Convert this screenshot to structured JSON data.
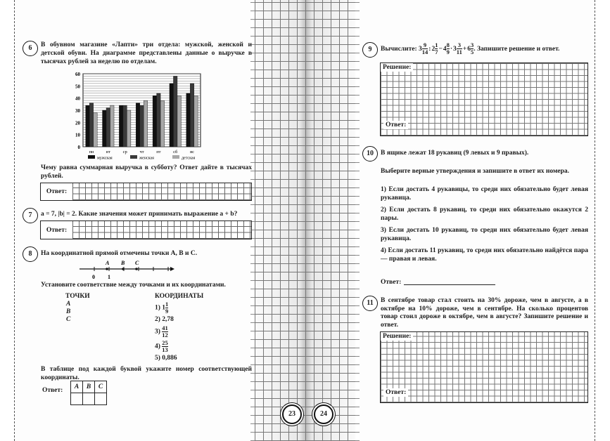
{
  "pages": {
    "left_number": "23",
    "right_number": "24"
  },
  "q6": {
    "number": "6",
    "text": "В обувном магазине «Лапти» три отдела: мужской, женской и детской обуви. На диаграмме представлены данные о выручке в тысячах рублей за неделю по отделам.",
    "question": "Чему равна суммарная выручка в субботу? Ответ дайте в тысячах рублей.",
    "answer_label": "Ответ:"
  },
  "chart_data": {
    "type": "bar",
    "categories": [
      "пн",
      "вт",
      "ср",
      "чт",
      "пт",
      "сб",
      "вс"
    ],
    "series": [
      {
        "name": "мужская",
        "values": [
          34,
          30,
          34,
          36,
          42,
          52,
          44
        ],
        "color": "#111111"
      },
      {
        "name": "женская",
        "values": [
          36,
          32,
          34,
          34,
          44,
          58,
          52
        ],
        "color": "#3a3a3a"
      },
      {
        "name": "детская",
        "values": [
          28,
          34,
          30,
          38,
          38,
          42,
          42
        ],
        "color": "#a8a8a8"
      }
    ],
    "yticks": [
      0,
      10,
      20,
      30,
      40,
      50,
      60
    ],
    "ylim": [
      0,
      60
    ],
    "grid": true,
    "legend": "bottom"
  },
  "q7": {
    "number": "7",
    "text": "a = 7, |b| = 2. Какие значения может принимать выражение a + b?",
    "answer_label": "Ответ:"
  },
  "q8": {
    "number": "8",
    "text": "На координатной прямой отмечены точки A, B и C.",
    "line_labels": {
      "zero": "0",
      "one": "1",
      "A": "A",
      "B": "B",
      "C": "C"
    },
    "instruction": "Установите соответствие между точками и их координатами.",
    "points_header": "ТОЧКИ",
    "points": [
      "A",
      "B",
      "C"
    ],
    "coords_header": "КООРДИНАТЫ",
    "coords": [
      {
        "n": "1)",
        "whole": "1",
        "num": "1",
        "den": "9"
      },
      {
        "n": "2)",
        "value": "2,78"
      },
      {
        "n": "3)",
        "num": "41",
        "den": "12"
      },
      {
        "n": "4)",
        "num": "25",
        "den": "13"
      },
      {
        "n": "5)",
        "value": "0,886"
      }
    ],
    "table_text": "В таблице под каждой буквой укажите номер соответствующей координаты.",
    "answer_label": "Ответ:",
    "table_headers": [
      "A",
      "B",
      "C"
    ]
  },
  "q9": {
    "number": "9",
    "prefix": "Вычислите:",
    "expr": [
      {
        "whole": "3",
        "num": "9",
        "den": "14"
      },
      {
        "op": ":"
      },
      {
        "whole": "2",
        "num": "1",
        "den": "7"
      },
      {
        "op": "−"
      },
      {
        "whole": "4",
        "num": "8",
        "den": "9"
      },
      {
        "op": "·"
      },
      {
        "whole": "3",
        "num": "3",
        "den": "11"
      },
      {
        "op": "+"
      },
      {
        "whole": "6",
        "num": "3",
        "den": "5"
      }
    ],
    "suffix": ". Запишите решение и ответ.",
    "solution_label": "Решение:",
    "answer_label": "Ответ:"
  },
  "q10": {
    "number": "10",
    "text": "В ящике лежат 18 рукавиц (9 левых и 9 правых).",
    "instruction": "Выберите верные утверждения и запишите в ответ их номера.",
    "options": [
      "1) Если достать 4 рукавицы, то среди них обязательно будет левая рукавица.",
      "2) Если достать 8 рукавиц, то среди них обязательно окажутся 2 пары.",
      "3) Если достать 10 рукавиц, то среди них обязательно будет левая рукавица.",
      "4) Если достать 11 рукавиц, то среди них обязательно найдётся пара — правая и левая."
    ],
    "answer_label": "Ответ:"
  },
  "q11": {
    "number": "11",
    "text": "В сентябре товар стал стоить на 30% дороже, чем в августе, а в октябре на 10% дороже, чем в сентябре. На сколько процентов товар стоил дороже в октябре, чем в августе? Запишите решение и ответ.",
    "solution_label": "Решение:",
    "answer_label": "Ответ:"
  }
}
